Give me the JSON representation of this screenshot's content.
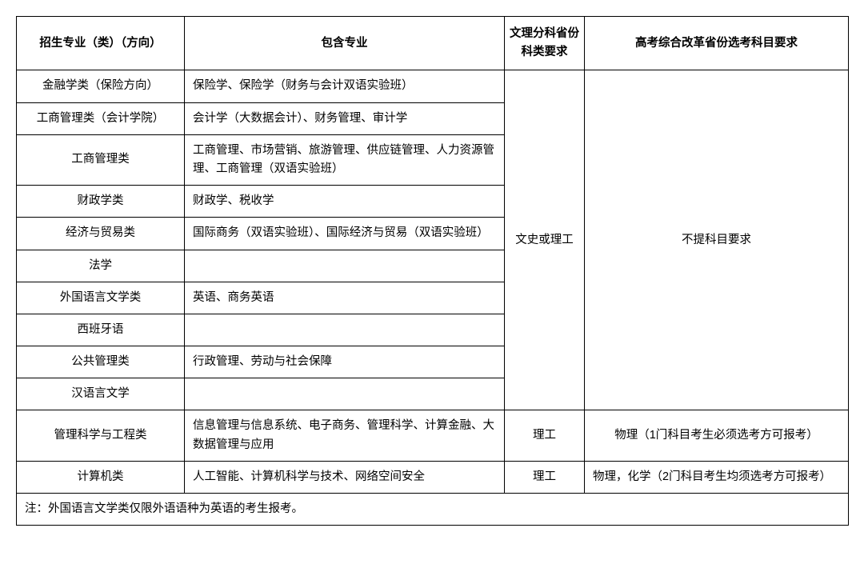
{
  "headers": {
    "col1": "招生专业（类）（方向）",
    "col2": "包含专业",
    "col3": "文理分科省份科类要求",
    "col4": "高考综合改革省份选考科目要求"
  },
  "group1": {
    "col3": "文史或理工",
    "col4": "不提科目要求",
    "rows": [
      {
        "c1": "金融学类（保险方向）",
        "c2": "保险学、保险学（财务与会计双语实验班）"
      },
      {
        "c1": "工商管理类（会计学院）",
        "c2": "会计学（大数据会计）、财务管理、审计学"
      },
      {
        "c1": "工商管理类",
        "c2": "工商管理、市场营销、旅游管理、供应链管理、人力资源管理、工商管理（双语实验班）"
      },
      {
        "c1": "财政学类",
        "c2": "财政学、税收学"
      },
      {
        "c1": "经济与贸易类",
        "c2": "国际商务（双语实验班）、国际经济与贸易（双语实验班）"
      },
      {
        "c1": "法学",
        "c2": ""
      },
      {
        "c1": "外国语言文学类",
        "c2": "英语、商务英语"
      },
      {
        "c1": "西班牙语",
        "c2": ""
      },
      {
        "c1": "公共管理类",
        "c2": "行政管理、劳动与社会保障"
      },
      {
        "c1": "汉语言文学",
        "c2": ""
      }
    ]
  },
  "row11": {
    "c1": "管理科学与工程类",
    "c2": "信息管理与信息系统、电子商务、管理科学、计算金融、大数据管理与应用",
    "c3": "理工",
    "c4": "物理（1门科目考生必须选考方可报考）"
  },
  "row12": {
    "c1": "计算机类",
    "c2": "人工智能、计算机科学与技术、网络空间安全",
    "c3": "理工",
    "c4": "物理，化学（2门科目考生均须选考方可报考）"
  },
  "footnote": "注：外国语言文学类仅限外语语种为英语的考生报考。"
}
